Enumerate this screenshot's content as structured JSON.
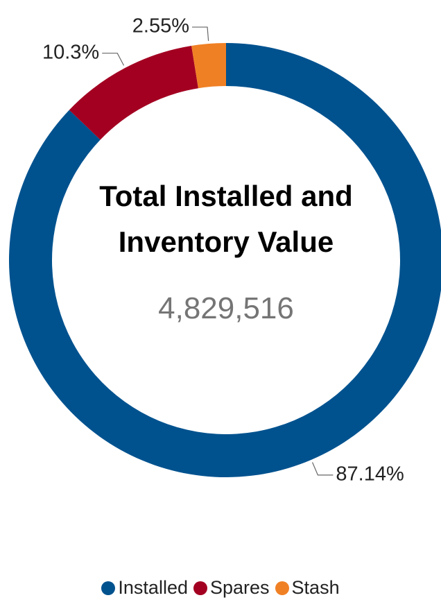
{
  "chart_data": {
    "type": "donut",
    "title": "Total Installed and Inventory Value",
    "total": {
      "value": 4829516,
      "label": "4,829,516"
    },
    "categories": [
      "Installed",
      "Spares",
      "Stash"
    ],
    "values": [
      87.14,
      10.3,
      2.55
    ],
    "value_labels": [
      "87.14%",
      "10.3%",
      "2.55%"
    ],
    "colors": [
      "#00528f",
      "#a30021",
      "#f08024"
    ],
    "legend": "bottom"
  }
}
